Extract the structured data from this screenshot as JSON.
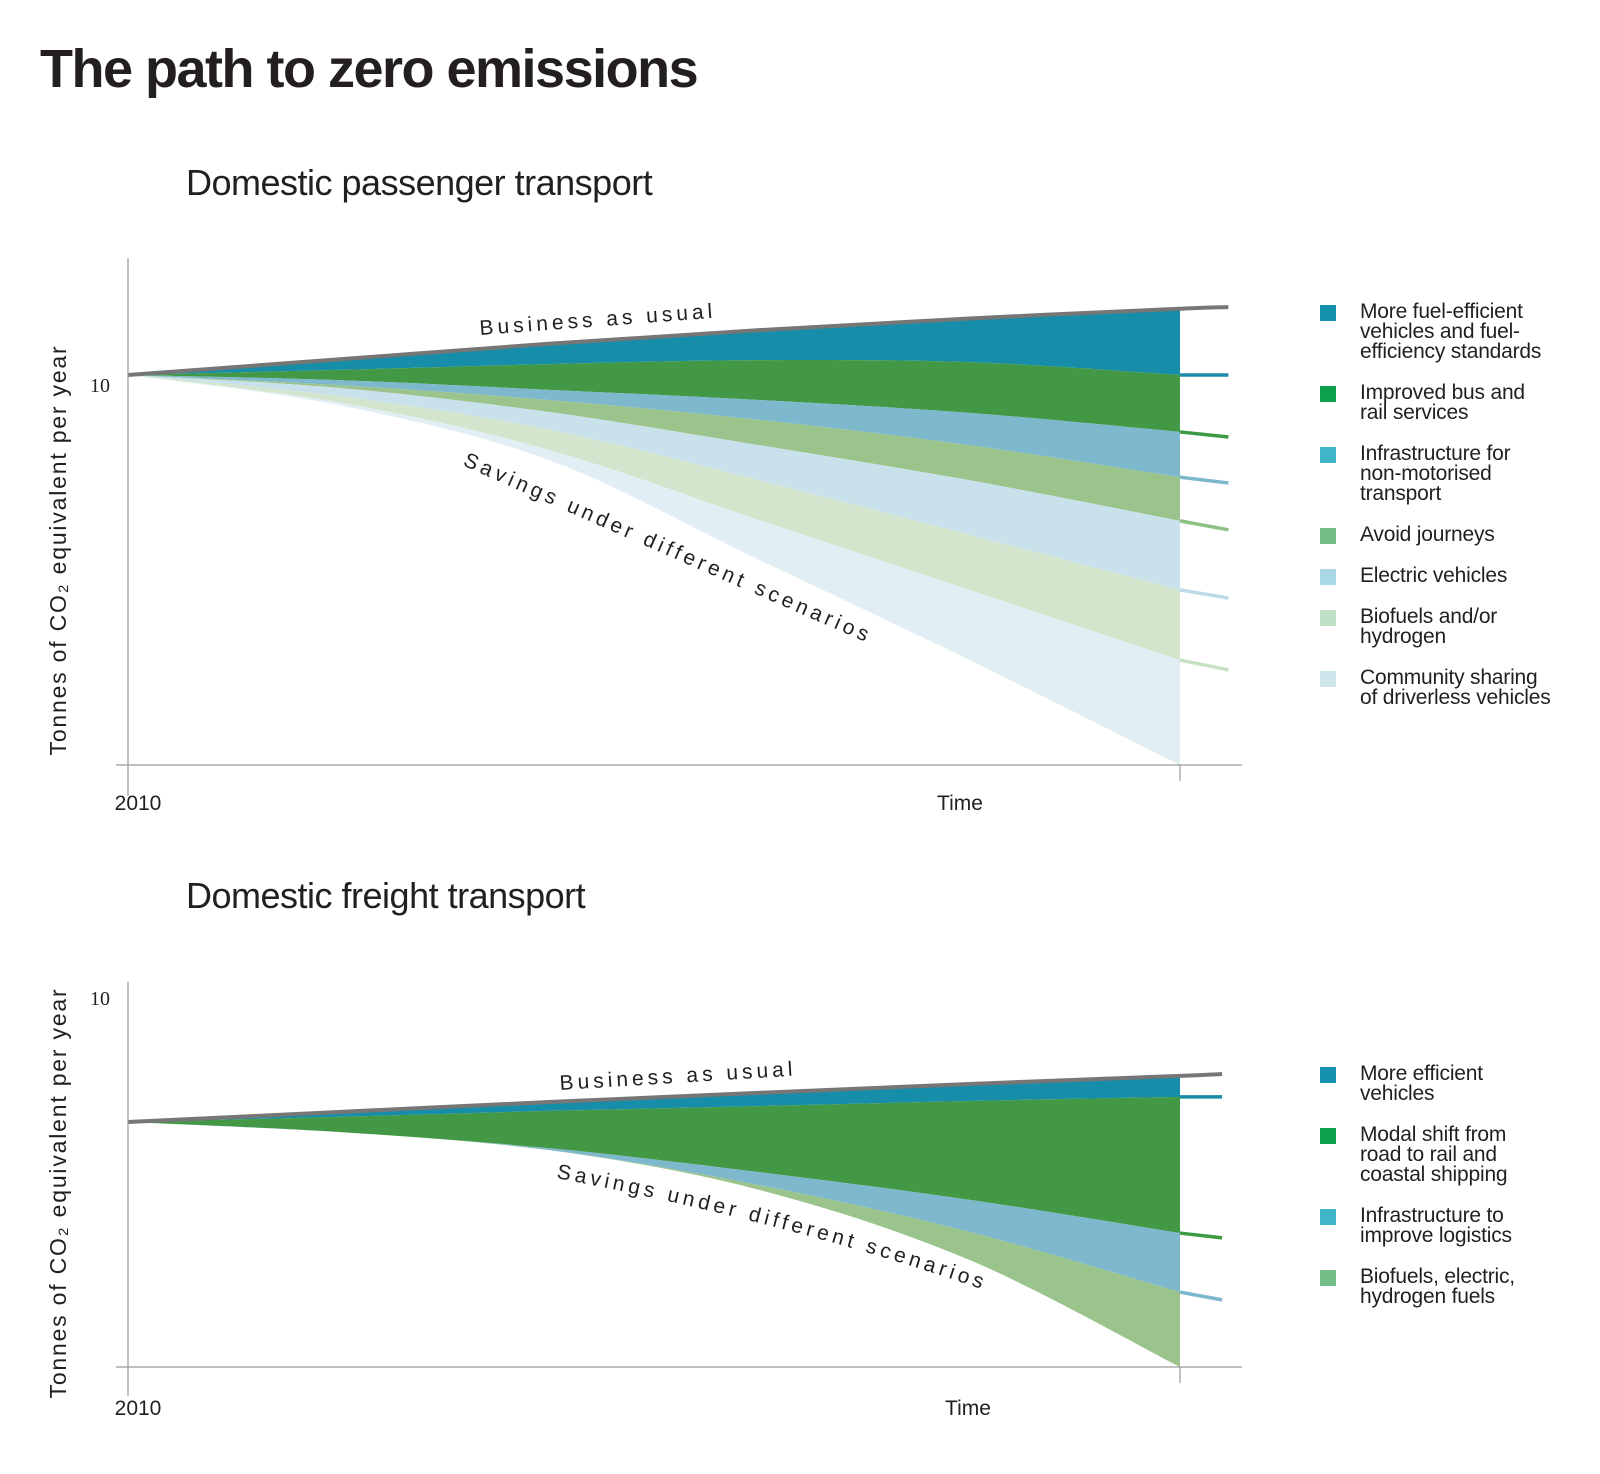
{
  "page_title": "The path to zero emissions",
  "chart_data": [
    {
      "type": "area",
      "title": "Domestic passenger transport",
      "xlabel": "Time",
      "ylabel": "Tonnes of CO₂ equivalent per year",
      "x_ticks": [
        {
          "t": 0,
          "label": "2010"
        }
      ],
      "y_ticks": [
        {
          "value": 10,
          "label": "10"
        }
      ],
      "ylim": [
        0,
        12.5
      ],
      "x": [
        0,
        0.2,
        0.4,
        0.6,
        0.8,
        1.0
      ],
      "tail_x": 1.046,
      "annotations": [
        {
          "text": "Business as usual",
          "along": "top"
        },
        {
          "text": "Savings under different scenarios",
          "along": "bottom"
        }
      ],
      "boundaries": [
        {
          "name": "Business as usual",
          "color": "#767676",
          "values": [
            10.0,
            10.4,
            10.8,
            11.15,
            11.45,
            11.7
          ],
          "tail": 11.74
        },
        {
          "name": "after fuel efficiency",
          "color": "#1a8ca8",
          "values": [
            10.0,
            10.13,
            10.28,
            10.38,
            10.33,
            10.0
          ],
          "tail": 10.0
        },
        {
          "name": "after bus and rail",
          "color": "#3d9a44",
          "values": [
            10.0,
            9.87,
            9.62,
            9.36,
            9.03,
            8.54
          ],
          "tail": 8.41
        },
        {
          "name": "after infrastructure",
          "color": "#7cb7cc",
          "values": [
            10.0,
            9.74,
            9.36,
            8.85,
            8.2,
            7.38
          ],
          "tail": 7.23
        },
        {
          "name": "after avoid journeys",
          "color": "#8dc083",
          "values": [
            10.0,
            9.67,
            9.05,
            8.2,
            7.3,
            6.26
          ],
          "tail": 6.03
        },
        {
          "name": "after electric vehicles",
          "color": "#bcdbe7",
          "values": [
            10.0,
            9.46,
            8.6,
            7.3,
            5.9,
            4.49
          ],
          "tail": 4.28
        },
        {
          "name": "after biofuels",
          "color": "#c7e2c2",
          "values": [
            10.0,
            9.3,
            8.08,
            6.28,
            4.49,
            2.69
          ],
          "tail": 2.44
        },
        {
          "name": "after community sharing",
          "color": "#dbe9ef",
          "values": [
            10.0,
            9.23,
            7.82,
            5.26,
            2.69,
            0.0
          ],
          "tail": null
        }
      ],
      "series": [
        {
          "name": "More fuel-efficient vehicles and fuel-efficiency standards",
          "fill": "#168ea9",
          "swatch": "#1491ad"
        },
        {
          "name": "Improved bus and rail services",
          "fill": "#429845",
          "swatch": "#0aa14a"
        },
        {
          "name": "Infrastructure for non-motorised transport",
          "fill": "#7db8cc",
          "swatch": "#41b6c9"
        },
        {
          "name": "Avoid journeys",
          "fill": "#9bc48d",
          "swatch": "#74bf89"
        },
        {
          "name": "Electric vehicles",
          "fill": "#c9e1eb",
          "swatch": "#a9d7e4"
        },
        {
          "name": "Biofuels and/or hydrogen",
          "fill": "#d3e5cc",
          "swatch": "#bfe0c4"
        },
        {
          "name": "Community sharing of driverless vehicles",
          "fill": "#e1eef3",
          "swatch": "#cfe5ec"
        }
      ]
    },
    {
      "type": "area",
      "title": "Domestic freight transport",
      "xlabel": "Time",
      "ylabel": "Tonnes of CO₂ equivalent per year",
      "x_ticks": [
        {
          "t": 0,
          "label": "2010"
        }
      ],
      "y_ticks": [
        {
          "value": 10,
          "label": "10"
        }
      ],
      "ylim": [
        0,
        10.5
      ],
      "x": [
        0,
        0.2,
        0.4,
        0.6,
        0.8,
        1.0
      ],
      "tail_x": 1.04,
      "annotations": [
        {
          "text": "Business as usual",
          "along": "top"
        },
        {
          "text": "Savings under different scenarios",
          "along": "bottom"
        }
      ],
      "boundaries": [
        {
          "name": "Business as usual",
          "color": "#767676",
          "values": [
            6.64,
            6.91,
            7.18,
            7.43,
            7.67,
            7.89
          ],
          "tail": 7.94
        },
        {
          "name": "after more efficient vehicles",
          "color": "#1a8ca8",
          "values": [
            6.64,
            6.78,
            6.94,
            7.07,
            7.21,
            7.32
          ],
          "tail": 7.32
        },
        {
          "name": "after modal shift",
          "color": "#3d9a44",
          "values": [
            6.64,
            6.37,
            5.93,
            5.28,
            4.53,
            3.63
          ],
          "tail": 3.5
        },
        {
          "name": "after logistics",
          "color": "#7cb7cc",
          "values": [
            6.64,
            6.37,
            5.88,
            4.93,
            3.66,
            2.03
          ],
          "tail": 1.82
        },
        {
          "name": "after biofuels electric hydrogen",
          "color": "#9bc48d",
          "values": [
            6.64,
            6.37,
            5.88,
            4.8,
            2.9,
            0.0
          ],
          "tail": null
        }
      ],
      "series": [
        {
          "name": "More efficient vehicles",
          "fill": "#168ea9",
          "swatch": "#1491ad"
        },
        {
          "name": "Modal shift from road to rail and coastal shipping",
          "fill": "#429845",
          "swatch": "#0aa14a"
        },
        {
          "name": "Infrastructure to improve logistics",
          "fill": "#7db8cc",
          "swatch": "#41b6c9"
        },
        {
          "name": "Biofuels, electric, hydrogen fuels",
          "fill": "#9bc48d",
          "swatch": "#74bf89"
        }
      ]
    }
  ],
  "legends": [
    {
      "items": [
        {
          "label": "More fuel-efficient\nvehicles and fuel-\nefficiency standards"
        },
        {
          "label": "Improved bus and\nrail services"
        },
        {
          "label": "Infrastructure for\nnon-motorised\ntransport"
        },
        {
          "label": "Avoid journeys"
        },
        {
          "label": "Electric vehicles"
        },
        {
          "label": "Biofuels and/or\nhydrogen"
        },
        {
          "label": "Community sharing\nof driverless vehicles"
        }
      ]
    },
    {
      "items": [
        {
          "label": "More efficient\nvehicles"
        },
        {
          "label": "Modal shift from\nroad to rail and\ncoastal shipping"
        },
        {
          "label": "Infrastructure to\nimprove logistics"
        },
        {
          "label": "Biofuels, electric,\nhydrogen fuels"
        }
      ]
    }
  ]
}
